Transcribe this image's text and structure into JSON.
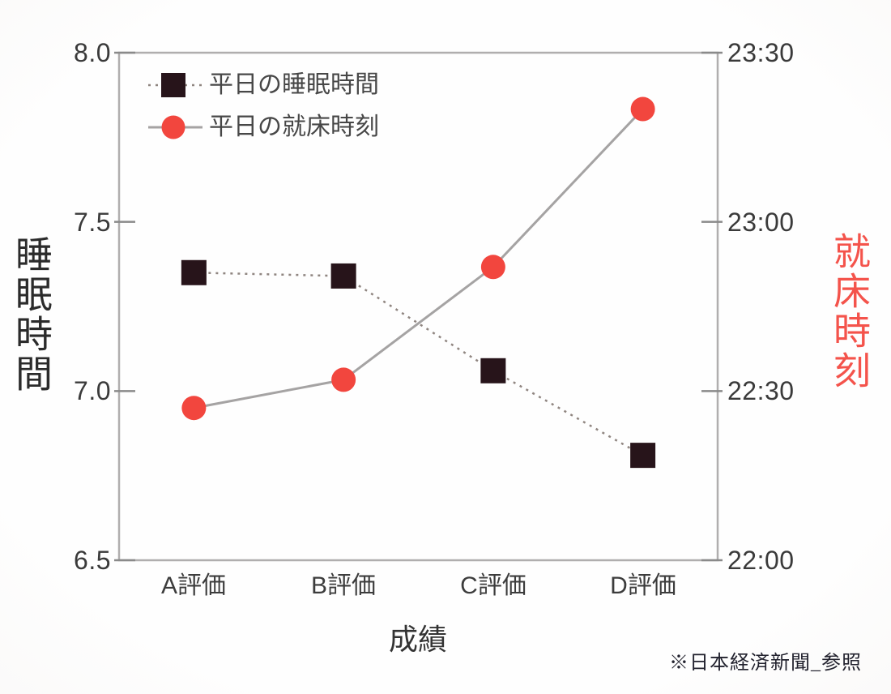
{
  "footer": {
    "source_note": "※日本経済新聞_参照"
  },
  "chart_data": {
    "type": "line",
    "title": "",
    "categories": [
      "A評価",
      "B評価",
      "C評価",
      "D評価"
    ],
    "xlabel": "成績",
    "y_left": {
      "label": "睡眠時間",
      "unit": "hours",
      "range": [
        6.5,
        8.0
      ],
      "ticks": [
        "8.0",
        "7.5",
        "7.0",
        "6.5"
      ],
      "tick_values": [
        8.0,
        7.5,
        7.0,
        6.5
      ]
    },
    "y_right": {
      "label": "就床時刻",
      "unit": "time",
      "ticks": [
        "23:30",
        "23:00",
        "22:30",
        "22:00"
      ],
      "tick_minutes_after_2200": [
        90,
        60,
        30,
        0
      ],
      "range_minutes_after_2200": [
        0,
        90
      ]
    },
    "series": [
      {
        "name": "平日の睡眠時間",
        "axis": "left",
        "marker": "square",
        "line_style": "dashed",
        "color": "#27141a",
        "values": [
          7.35,
          7.34,
          7.06,
          6.81
        ]
      },
      {
        "name": "平日の就床時刻",
        "axis": "right",
        "marker": "circle",
        "line_style": "solid",
        "color": "#f2463e",
        "values_time": [
          "22:27",
          "22:32",
          "22:52",
          "23:20"
        ],
        "values_minutes_after_2200": [
          27,
          32,
          52,
          80
        ]
      }
    ],
    "legend": {
      "position": "top-left-inside",
      "items": [
        "平日の睡眠時間",
        "平日の就床時刻"
      ]
    },
    "grid": false,
    "colors": {
      "spine": "#b0aeae",
      "solid_line": "#a5a3a3",
      "dashed_line": "#8f8580",
      "tick_mark": "#8a8a8a",
      "tick_text": "#3a3a3a",
      "left_label": "#2b2b2b",
      "right_label": "#f4534b",
      "legend_text": "#474747",
      "footer_text": "#22222e"
    }
  }
}
